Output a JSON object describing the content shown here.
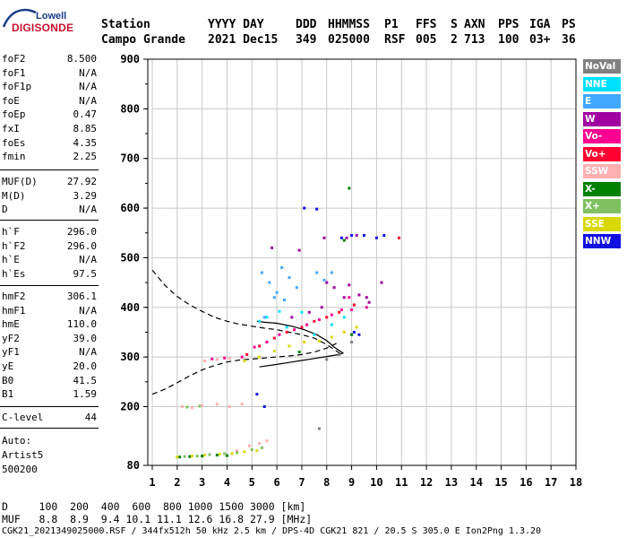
{
  "logo": {
    "top": "Lowell",
    "main": "DIGISONDE"
  },
  "header": {
    "row1": [
      "Station",
      "YYYY DAY",
      "DDD",
      "HHMMSS",
      "P1",
      "FFS",
      "S",
      "AXN",
      "PPS",
      "IGA",
      "PS"
    ],
    "row2": [
      "Campo Grande",
      "2021 Dec15",
      "349",
      "025000",
      "RSF",
      "005",
      "2",
      "713",
      "100",
      "03+",
      "36"
    ]
  },
  "params_a": [
    {
      "name": "foF2",
      "value": "8.500"
    },
    {
      "name": "foF1",
      "value": "N/A"
    },
    {
      "name": "foF1p",
      "value": "N/A"
    },
    {
      "name": "foE",
      "value": "N/A"
    },
    {
      "name": "foEp",
      "value": "0.47"
    },
    {
      "name": "fxI",
      "value": "8.85"
    },
    {
      "name": "foEs",
      "value": "4.35"
    },
    {
      "name": "fmin",
      "value": "2.25"
    }
  ],
  "params_b": [
    {
      "name": "MUF(D)",
      "value": "27.92"
    },
    {
      "name": "M(D)",
      "value": "3.29"
    },
    {
      "name": "D",
      "value": "N/A"
    }
  ],
  "params_c": [
    {
      "name": "h`F",
      "value": "296.0"
    },
    {
      "name": "h`F2",
      "value": "296.0"
    },
    {
      "name": "h`E",
      "value": "N/A"
    },
    {
      "name": "h`Es",
      "value": "97.5"
    }
  ],
  "params_d": [
    {
      "name": "hmF2",
      "value": "306.1"
    },
    {
      "name": "hmF1",
      "value": "N/A"
    },
    {
      "name": "hmE",
      "value": "110.0"
    },
    {
      "name": "yF2",
      "value": "39.0"
    },
    {
      "name": "yF1",
      "value": "N/A"
    },
    {
      "name": "yE",
      "value": "20.0"
    },
    {
      "name": "B0",
      "value": "41.5"
    },
    {
      "name": "B1",
      "value": "1.59"
    }
  ],
  "params_e": [
    {
      "name": "C-level",
      "value": "44"
    }
  ],
  "auto_info": [
    "Auto:",
    "Artist5",
    "500200"
  ],
  "legend": [
    {
      "label": "NoVal",
      "bg": "#808080",
      "fg": "#ffffff"
    },
    {
      "label": "NNE",
      "bg": "#00e0ff",
      "fg": "#ffffff"
    },
    {
      "label": "E",
      "bg": "#40a8ff",
      "fg": "#ffffff"
    },
    {
      "label": "W",
      "bg": "#a000a0",
      "fg": "#ffffff"
    },
    {
      "label": "Vo-",
      "bg": "#ff0090",
      "fg": "#ffffff"
    },
    {
      "label": "Vo+",
      "bg": "#ff0030",
      "fg": "#ffffff"
    },
    {
      "label": "SSW",
      "bg": "#ffb0b0",
      "fg": "#ffffff"
    },
    {
      "label": "X-",
      "bg": "#008000",
      "fg": "#ffffff"
    },
    {
      "label": "X+",
      "bg": "#80c060",
      "fg": "#ffffff"
    },
    {
      "label": "SSE",
      "bg": "#d8d800",
      "fg": "#ffffff"
    },
    {
      "label": "NNW",
      "bg": "#1010e0",
      "fg": "#ffffff"
    }
  ],
  "footer": {
    "row1": "D     100  200  400  600  800 1000 1500 3000 [km]",
    "row2": "MUF   8.8  8.9  9.4 10.1 11.1 12.6 16.8 27.9 [MHz]",
    "row3": "CGK21_2021349025000.RSF / 344fx512h 50 kHz 2.5 km / DPS-4D CGK21 821 / 20.5 S 305.0 E Ion2Png 1.3.20"
  },
  "chart_data": {
    "type": "scatter",
    "title": "",
    "xlabel": "",
    "ylabel": "",
    "xlim": [
      1,
      18
    ],
    "ylim": [
      80,
      900
    ],
    "x_ticks": [
      1,
      2,
      3,
      4,
      5,
      6,
      7,
      8,
      9,
      10,
      11,
      12,
      13,
      14,
      15,
      16,
      17,
      18
    ],
    "y_ticks": [
      80,
      200,
      300,
      400,
      500,
      600,
      700,
      800,
      900
    ],
    "grid": true,
    "legend_position": "right",
    "series": [
      {
        "name": "NNE",
        "color": "#00e0ff",
        "points": [
          [
            5.3,
            372
          ],
          [
            5.6,
            380
          ],
          [
            6.1,
            392
          ],
          [
            6.4,
            360
          ],
          [
            7.0,
            390
          ],
          [
            7.5,
            345
          ],
          [
            8.2,
            365
          ],
          [
            8.7,
            380
          ]
        ]
      },
      {
        "name": "E",
        "color": "#40a8ff",
        "points": [
          [
            5.4,
            470
          ],
          [
            5.7,
            450
          ],
          [
            6.0,
            430
          ],
          [
            6.2,
            480
          ],
          [
            6.5,
            460
          ],
          [
            6.8,
            440
          ],
          [
            6.3,
            415
          ],
          [
            5.9,
            420
          ],
          [
            7.6,
            470
          ],
          [
            7.9,
            455
          ],
          [
            8.2,
            470
          ],
          [
            5.5,
            380
          ]
        ]
      },
      {
        "name": "W",
        "color": "#a000a0",
        "points": [
          [
            8.0,
            450
          ],
          [
            8.3,
            440
          ],
          [
            8.7,
            420
          ],
          [
            8.9,
            445
          ],
          [
            9.3,
            425
          ],
          [
            9.6,
            420
          ],
          [
            7.8,
            400
          ],
          [
            7.3,
            390
          ],
          [
            6.6,
            380
          ],
          [
            8.8,
            540
          ],
          [
            9.2,
            545
          ],
          [
            7.9,
            540
          ],
          [
            6.9,
            515
          ],
          [
            5.8,
            520
          ],
          [
            9.7,
            410
          ],
          [
            10.2,
            450
          ]
        ]
      },
      {
        "name": "Vo-",
        "color": "#ff0090",
        "points": [
          [
            4.6,
            300
          ],
          [
            5.1,
            320
          ],
          [
            5.6,
            330
          ],
          [
            6.1,
            345
          ],
          [
            6.7,
            355
          ],
          [
            7.2,
            365
          ],
          [
            7.7,
            375
          ],
          [
            8.2,
            385
          ],
          [
            8.6,
            395
          ],
          [
            9.0,
            395
          ],
          [
            8.9,
            420
          ],
          [
            9.6,
            400
          ],
          [
            3.4,
            296
          ],
          [
            3.9,
            298
          ]
        ]
      },
      {
        "name": "Vo+",
        "color": "#ff0030",
        "points": [
          [
            4.8,
            305
          ],
          [
            5.3,
            322
          ],
          [
            5.9,
            338
          ],
          [
            6.4,
            350
          ],
          [
            7.0,
            360
          ],
          [
            7.5,
            372
          ],
          [
            8.0,
            380
          ],
          [
            8.5,
            390
          ],
          [
            9.1,
            405
          ],
          [
            10.9,
            540
          ]
        ]
      },
      {
        "name": "SSW",
        "color": "#ffb0b0",
        "points": [
          [
            2.2,
            200
          ],
          [
            2.6,
            198
          ],
          [
            3.0,
            202
          ],
          [
            3.6,
            205
          ],
          [
            4.1,
            200
          ],
          [
            4.6,
            205
          ],
          [
            4.4,
            110
          ],
          [
            4.9,
            120
          ],
          [
            5.3,
            125
          ],
          [
            5.6,
            130
          ],
          [
            3.1,
            292
          ],
          [
            3.6,
            295
          ],
          [
            4.1,
            297
          ]
        ]
      },
      {
        "name": "X-",
        "color": "#008000",
        "points": [
          [
            2.1,
            97
          ],
          [
            2.5,
            98
          ],
          [
            3.0,
            99
          ],
          [
            3.6,
            101
          ],
          [
            4.0,
            100
          ],
          [
            8.7,
            535
          ],
          [
            8.9,
            640
          ],
          [
            6.9,
            310
          ],
          [
            9.0,
            345
          ]
        ]
      },
      {
        "name": "X+",
        "color": "#80c060",
        "points": [
          [
            2.3,
            98
          ],
          [
            2.8,
            99
          ],
          [
            3.3,
            102
          ],
          [
            3.9,
            104
          ],
          [
            4.4,
            106
          ],
          [
            5.0,
            112
          ],
          [
            5.4,
            116
          ],
          [
            2.4,
            199
          ],
          [
            2.9,
            201
          ]
        ]
      },
      {
        "name": "SSE",
        "color": "#d8d800",
        "points": [
          [
            2.0,
            97
          ],
          [
            2.6,
            99
          ],
          [
            3.1,
            101
          ],
          [
            3.7,
            103
          ],
          [
            4.2,
            104
          ],
          [
            4.7,
            108
          ],
          [
            5.2,
            110
          ],
          [
            4.7,
            292
          ],
          [
            5.3,
            300
          ],
          [
            5.9,
            312
          ],
          [
            6.5,
            322
          ],
          [
            7.1,
            330
          ],
          [
            7.7,
            332
          ],
          [
            8.2,
            340
          ],
          [
            8.7,
            350
          ],
          [
            9.2,
            360
          ]
        ]
      },
      {
        "name": "NNW",
        "color": "#1010e0",
        "points": [
          [
            8.6,
            540
          ],
          [
            9.0,
            545
          ],
          [
            9.5,
            545
          ],
          [
            10.0,
            540
          ],
          [
            10.3,
            545
          ],
          [
            7.1,
            600
          ],
          [
            7.6,
            598
          ],
          [
            9.1,
            350
          ],
          [
            9.3,
            345
          ],
          [
            5.5,
            200
          ],
          [
            5.2,
            225
          ]
        ]
      },
      {
        "name": "NoVal",
        "color": "#808080",
        "points": [
          [
            8.0,
            295
          ],
          [
            8.5,
            305
          ],
          [
            9.0,
            330
          ],
          [
            7.7,
            155
          ]
        ]
      }
    ],
    "curves": [
      {
        "style": "dashed",
        "points": [
          [
            1.0,
            475
          ],
          [
            1.5,
            445
          ],
          [
            2.0,
            422
          ],
          [
            2.5,
            405
          ],
          [
            3.0,
            392
          ],
          [
            3.5,
            380
          ],
          [
            4.0,
            372
          ],
          [
            4.5,
            366
          ],
          [
            5.0,
            362
          ],
          [
            5.5,
            358
          ],
          [
            6.0,
            355
          ],
          [
            6.5,
            350
          ],
          [
            7.0,
            345
          ],
          [
            7.5,
            338
          ],
          [
            8.0,
            325
          ],
          [
            8.3,
            315
          ],
          [
            8.6,
            305
          ]
        ]
      },
      {
        "style": "dashed",
        "points": [
          [
            1.0,
            225
          ],
          [
            1.5,
            235
          ],
          [
            2.0,
            248
          ],
          [
            2.5,
            262
          ],
          [
            3.0,
            274
          ],
          [
            3.5,
            283
          ],
          [
            4.0,
            290
          ],
          [
            4.5,
            294
          ],
          [
            5.0,
            296
          ],
          [
            5.5,
            298
          ],
          [
            6.0,
            300
          ],
          [
            6.5,
            302
          ],
          [
            7.0,
            305
          ],
          [
            7.5,
            310
          ],
          [
            8.0,
            318
          ],
          [
            8.5,
            330
          ]
        ]
      },
      {
        "style": "solid",
        "points": [
          [
            5.3,
            280
          ],
          [
            6.0,
            285
          ],
          [
            6.5,
            289
          ],
          [
            7.0,
            293
          ],
          [
            7.5,
            297
          ],
          [
            8.0,
            301
          ],
          [
            8.5,
            305
          ],
          [
            8.65,
            308
          ],
          [
            8.3,
            320
          ],
          [
            8.0,
            333
          ],
          [
            7.6,
            345
          ],
          [
            7.1,
            355
          ],
          [
            6.6,
            362
          ],
          [
            6.0,
            368
          ],
          [
            5.5,
            370
          ],
          [
            5.2,
            372
          ]
        ]
      }
    ]
  }
}
